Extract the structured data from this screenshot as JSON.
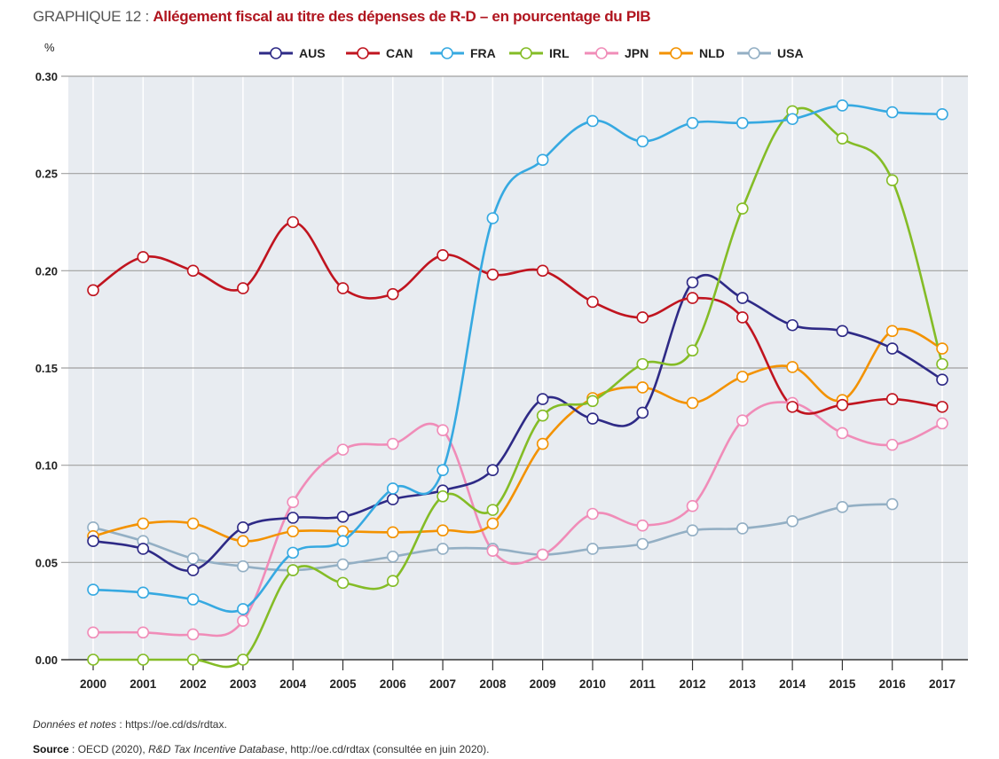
{
  "header": {
    "prefix": "GRAPHIQUE 12 : ",
    "title": "Allégement fiscal au titre des dépenses de R-D – en pourcentage du PIB",
    "unit": "%"
  },
  "footer": {
    "notes_label": "Données et notes",
    "notes_text": " : https://oe.cd/ds/rdtax.",
    "source_label": "Source",
    "source_text_1": " : OECD (2020), ",
    "source_italic": "R&D Tax Incentive Database",
    "source_text_2": ", http://oe.cd/rdtax (consultée en juin 2020)."
  },
  "chart_data": {
    "type": "line",
    "title": "Allégement fiscal au titre des dépenses de R-D – en pourcentage du PIB",
    "xlabel": "",
    "ylabel": "%",
    "ylim": [
      0,
      0.3
    ],
    "yticks": [
      "0.00",
      "0.05",
      "0.10",
      "0.15",
      "0.20",
      "0.25",
      "0.30"
    ],
    "ytick_values": [
      0,
      0.05,
      0.1,
      0.15,
      0.2,
      0.25,
      0.3
    ],
    "grid": true,
    "legend": "top-center",
    "categories": [
      "2000",
      "2001",
      "2002",
      "2003",
      "2004",
      "2005",
      "2006",
      "2007",
      "2008",
      "2009",
      "2010",
      "2011",
      "2012",
      "2013",
      "2014",
      "2015",
      "2016",
      "2017"
    ],
    "series": [
      {
        "name": "AUS",
        "color": "#2e2a86",
        "values": [
          0.061,
          0.057,
          0.046,
          0.068,
          0.073,
          0.0735,
          0.0825,
          0.087,
          0.0975,
          0.134,
          0.124,
          0.127,
          0.194,
          0.186,
          0.172,
          0.169,
          0.16,
          0.144
        ]
      },
      {
        "name": "CAN",
        "color": "#c0141f",
        "values": [
          0.19,
          0.207,
          0.2,
          0.191,
          0.225,
          0.191,
          0.188,
          0.208,
          0.198,
          0.2,
          0.184,
          0.176,
          0.186,
          0.176,
          0.13,
          0.131,
          0.134,
          0.13
        ]
      },
      {
        "name": "FRA",
        "color": "#36a9e1",
        "values": [
          0.036,
          0.0345,
          0.031,
          0.026,
          0.055,
          0.061,
          0.088,
          0.0975,
          0.227,
          0.257,
          0.277,
          0.2665,
          0.276,
          0.276,
          0.278,
          0.285,
          0.2815,
          0.2805
        ]
      },
      {
        "name": "IRL",
        "color": "#84bc26",
        "values": [
          0,
          0,
          0,
          0,
          0.046,
          0.0395,
          0.0405,
          0.084,
          0.077,
          0.1255,
          0.133,
          0.152,
          0.159,
          0.232,
          0.282,
          0.268,
          0.2465,
          0.152
        ]
      },
      {
        "name": "JPN",
        "color": "#f08cb8",
        "values": [
          0.014,
          0.014,
          0.013,
          0.02,
          0.081,
          0.108,
          0.111,
          0.118,
          0.056,
          0.054,
          0.075,
          0.069,
          0.079,
          0.123,
          0.132,
          0.1165,
          0.1105,
          0.1215
        ]
      },
      {
        "name": "NLD",
        "color": "#f39200",
        "values": [
          0.0635,
          0.07,
          0.07,
          0.061,
          0.066,
          0.066,
          0.0655,
          0.0665,
          0.07,
          0.111,
          0.1345,
          0.14,
          0.132,
          0.1455,
          0.1505,
          0.1335,
          0.169,
          0.16
        ]
      },
      {
        "name": "USA",
        "color": "#93afc4",
        "values": [
          0.068,
          0.061,
          0.052,
          0.048,
          0.046,
          0.049,
          0.053,
          0.057,
          0.057,
          0.054,
          0.057,
          0.0595,
          0.0665,
          0.0675,
          0.0712,
          0.0785,
          0.08,
          null
        ]
      }
    ]
  }
}
